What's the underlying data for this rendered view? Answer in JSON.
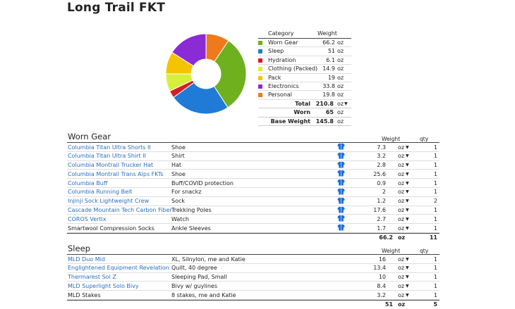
{
  "title": "Long Trail FKT",
  "summary": {
    "header": {
      "category": "Category",
      "weight": "Weight"
    },
    "rows": [
      {
        "label": "Worn Gear",
        "value": "66.2",
        "unit": "oz",
        "color": "#6fb01f"
      },
      {
        "label": "Sleep",
        "value": "51",
        "unit": "oz",
        "color": "#1f7bd6"
      },
      {
        "label": "Hydration",
        "value": "6.1",
        "unit": "oz",
        "color": "#d41e2a"
      },
      {
        "label": "Clothing (Packed)",
        "value": "14.9",
        "unit": "oz",
        "color": "#d6ef3a"
      },
      {
        "label": "Pack",
        "value": "19",
        "unit": "oz",
        "color": "#f5c400"
      },
      {
        "label": "Electronics",
        "value": "33.8",
        "unit": "oz",
        "color": "#8a2bd6"
      },
      {
        "label": "Personal",
        "value": "19.8",
        "unit": "oz",
        "color": "#ee7a1c"
      }
    ],
    "totals": [
      {
        "label": "Total",
        "value": "210.8",
        "unit": "oz",
        "caret": "▼"
      },
      {
        "label": "Worn",
        "value": "65",
        "unit": "oz",
        "caret": ""
      },
      {
        "label": "Base Weight",
        "value": "145.8",
        "unit": "oz",
        "caret": ""
      }
    ]
  },
  "chart_data": {
    "type": "pie",
    "categories": [
      "Worn Gear",
      "Sleep",
      "Hydration",
      "Clothing (Packed)",
      "Pack",
      "Electronics",
      "Personal"
    ],
    "values": [
      66.2,
      51,
      6.1,
      14.9,
      19,
      33.8,
      19.8
    ],
    "colors": [
      "#6fb01f",
      "#1f7bd6",
      "#d41e2a",
      "#d6ef3a",
      "#f5c400",
      "#8a2bd6",
      "#ee7a1c"
    ],
    "donut": true
  },
  "categories": [
    {
      "name": "Worn Gear",
      "weight_header": "Weight",
      "qty_header": "qty",
      "items": [
        {
          "name": "Columbia Titan Ultra Shorts II",
          "desc": "Shoe",
          "weight": "7.3",
          "unit": "oz",
          "qty": "1",
          "link": true,
          "worn": true
        },
        {
          "name": "Columbia Titan Ultra Shirt II",
          "desc": "Shirt",
          "weight": "3.2",
          "unit": "oz",
          "qty": "1",
          "link": true,
          "worn": true
        },
        {
          "name": "Columbia Montrail Trucker Hat",
          "desc": "Hat",
          "weight": "2.8",
          "unit": "oz",
          "qty": "1",
          "link": true,
          "worn": true
        },
        {
          "name": "Columbia Montrail Trans Alps FKTs",
          "desc": "Shoe",
          "weight": "25.6",
          "unit": "oz",
          "qty": "1",
          "link": true,
          "worn": true
        },
        {
          "name": "Columbia Buff",
          "desc": "Buff/COVID protection",
          "weight": "0.9",
          "unit": "oz",
          "qty": "1",
          "link": true,
          "worn": true
        },
        {
          "name": "Columbia Running Belt",
          "desc": "For snackz",
          "weight": "2",
          "unit": "oz",
          "qty": "1",
          "link": true,
          "worn": true
        },
        {
          "name": "Injinji Sock Lightweight Crew",
          "desc": "Sock",
          "weight": "1.2",
          "unit": "oz",
          "qty": "2",
          "link": true,
          "worn": true
        },
        {
          "name": "Cascade Mountain Tech Carbon Fiber",
          "desc": "Trekking Poles",
          "weight": "17.6",
          "unit": "oz",
          "qty": "1",
          "link": true,
          "worn": true
        },
        {
          "name": "COROS Vertix",
          "desc": "Watch",
          "weight": "2.7",
          "unit": "oz",
          "qty": "1",
          "link": true,
          "worn": true
        },
        {
          "name": "Smartwool Compression Socks",
          "desc": "Ankle Sleeves",
          "weight": "1.7",
          "unit": "oz",
          "qty": "1",
          "link": false,
          "worn": true
        }
      ],
      "total_weight": "66.2",
      "total_unit": "oz",
      "total_qty": "11"
    },
    {
      "name": "Sleep",
      "weight_header": "Weight",
      "qty_header": "qty",
      "items": [
        {
          "name": "MLD Duo Mid",
          "desc": "XL, Silnylon, me and Katie",
          "weight": "16",
          "unit": "oz",
          "qty": "1",
          "link": true,
          "worn": false
        },
        {
          "name": "Englightened Equipment Revelation",
          "desc": "Quilt, 40 degree",
          "weight": "13.4",
          "unit": "oz",
          "qty": "1",
          "link": true,
          "worn": false
        },
        {
          "name": "Thermarest Sol Z",
          "desc": "Sleeping Pad, Small",
          "weight": "10",
          "unit": "oz",
          "qty": "1",
          "link": true,
          "worn": false
        },
        {
          "name": "MLD Superlight Solo Bivy",
          "desc": "Bivy w/ guylines",
          "weight": "8.4",
          "unit": "oz",
          "qty": "1",
          "link": true,
          "worn": false
        },
        {
          "name": "MLD Stakes",
          "desc": "8 stakes, me and Katie",
          "weight": "3.2",
          "unit": "oz",
          "qty": "1",
          "link": false,
          "worn": false
        }
      ],
      "total_weight": "51",
      "total_unit": "oz",
      "total_qty": "5"
    }
  ]
}
